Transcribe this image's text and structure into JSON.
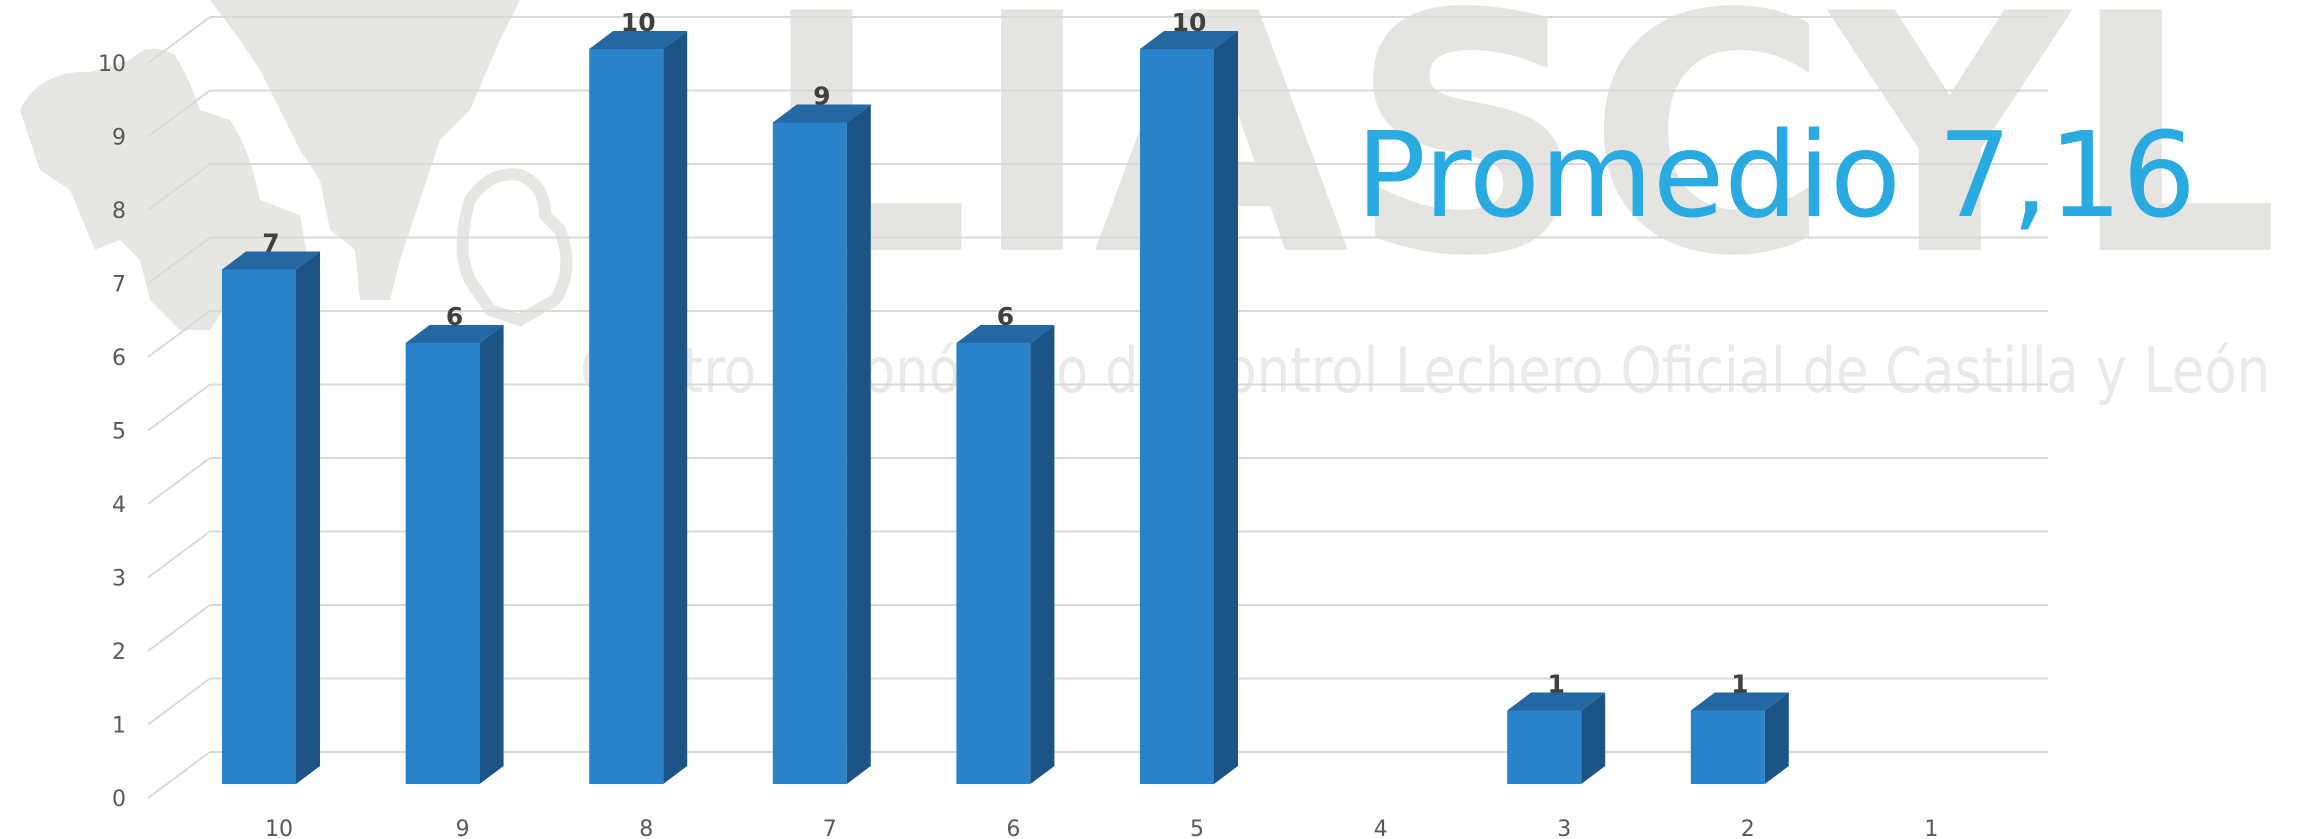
{
  "watermark": {
    "logo_text": "LIASCYL",
    "subtitle": "Centro Autonómico de Control Lechero Oficial de Castilla y León"
  },
  "annotation": {
    "average_label": "Promedio 7,16"
  },
  "colors": {
    "bar_front": "#2a82c8",
    "bar_side": "#1c5485",
    "bar_top": "#2367a3",
    "gridline": "#d9d9d9",
    "average_text": "#29aae1"
  },
  "chart_data": {
    "type": "bar",
    "categories": [
      "10",
      "9",
      "8",
      "7",
      "6",
      "5",
      "4",
      "3",
      "2",
      "1"
    ],
    "values": [
      7,
      6,
      10,
      9,
      6,
      10,
      0,
      1,
      1,
      0
    ],
    "data_labels": [
      "7",
      "6",
      "10",
      "9",
      "6",
      "10",
      "",
      "1",
      "1",
      ""
    ],
    "y_ticks": [
      "0",
      "1",
      "2",
      "3",
      "4",
      "5",
      "6",
      "7",
      "8",
      "9",
      "10"
    ],
    "ylim": [
      0,
      10
    ],
    "title": "",
    "xlabel": "",
    "ylabel": "",
    "grid": true,
    "legend": "none",
    "style": "3d-column"
  }
}
